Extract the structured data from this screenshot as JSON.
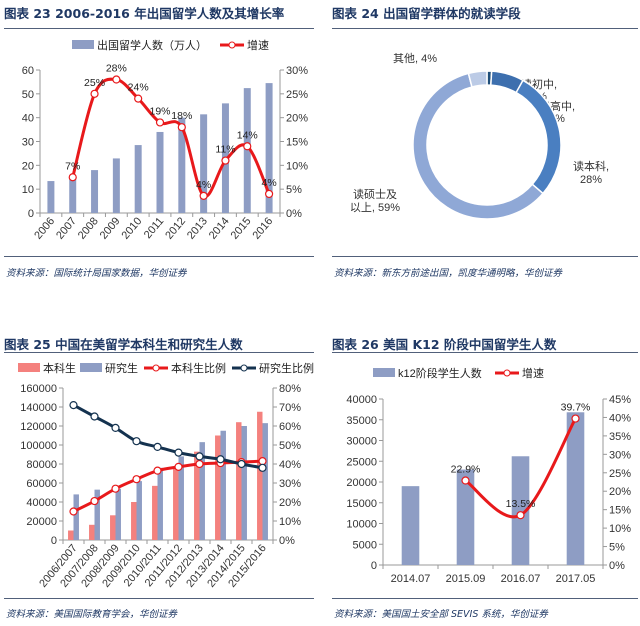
{
  "figures": [
    {
      "title": "图表 23 2006-2016 年出国留学人数及其增长率",
      "source": "资料来源：国际统计局国家数据，华创证券"
    },
    {
      "title": "图表 24 出国留学群体的就读学段",
      "source": "资料来源：新东方前途出国，凯度华通明略，华创证券"
    },
    {
      "title": "图表 25 中国在美留学本科生和研究生人数",
      "source": "资料来源：美国国际教育学会，华创证券"
    },
    {
      "title": "图表 26 美国 K12 阶段中国留学生人数",
      "source": "资料来源：美国国土安全部 SEVIS 系统，华创证券"
    }
  ],
  "chart_data": [
    {
      "type": "bar+line",
      "categories": [
        "2006",
        "2007",
        "2008",
        "2009",
        "2010",
        "2011",
        "2012",
        "2013",
        "2014",
        "2015",
        "2016"
      ],
      "bar_series": [
        {
          "name": "出国留学人数（万人）",
          "values": [
            13.4,
            14.4,
            18.0,
            22.9,
            28.5,
            34.0,
            40.0,
            41.4,
            46.0,
            52.4,
            54.5
          ],
          "color": "#8e9dc4"
        }
      ],
      "line_series": [
        {
          "name": "增速",
          "values": [
            null,
            7.5,
            25,
            28,
            24,
            19,
            18,
            3.6,
            11,
            14,
            4
          ],
          "labels": [
            "",
            "7%",
            "25%",
            "28%",
            "24%",
            "19%",
            "18%",
            "4%",
            "11%",
            "14%",
            "4%"
          ],
          "color": "#e8191b"
        }
      ],
      "ylim": [
        0,
        60
      ],
      "yticks": [
        0,
        10,
        20,
        30,
        40,
        50,
        60
      ],
      "y2lim": [
        0,
        30
      ],
      "y2ticks": [
        "0%",
        "5%",
        "10%",
        "15%",
        "20%",
        "25%",
        "30%"
      ],
      "legend": "top",
      "x_labels_rotated": true
    },
    {
      "type": "pie",
      "donut": true,
      "slices": [
        {
          "label": "读初中,",
          "value_label": "1%",
          "value": 1,
          "color": "#1f4e79"
        },
        {
          "label": "读高中,",
          "value_label": "7%",
          "value": 7,
          "color": "#3d6fae"
        },
        {
          "label": "读本科,",
          "value_label": "28%",
          "value": 28,
          "color": "#4a7fc1"
        },
        {
          "label": "读硕士及",
          "value_label": "以上, 59%",
          "value": 59,
          "color": "#8fa8d6"
        },
        {
          "label": "其他,",
          "value_label": "4%",
          "value": 4,
          "color": "#bccbe6"
        }
      ]
    },
    {
      "type": "bar+line",
      "categories": [
        "2006/2007",
        "2007/2008",
        "2008/2009",
        "2009/2010",
        "2010/2011",
        "2011/2012",
        "2012/2013",
        "2013/2014",
        "2014/2015",
        "2015/2016"
      ],
      "bar_series": [
        {
          "name": "本科生",
          "values": [
            10000,
            16000,
            26000,
            40000,
            57000,
            75000,
            93000,
            110000,
            124000,
            135000
          ],
          "color": "#f4817e"
        },
        {
          "name": "研究生",
          "values": [
            48000,
            53000,
            54000,
            62000,
            76000,
            88000,
            103000,
            115000,
            120000,
            123000
          ],
          "color": "#8e9dc4"
        }
      ],
      "line_series": [
        {
          "name": "本科生比例",
          "values": [
            15,
            20.5,
            27,
            32,
            36.5,
            38.5,
            40,
            40.5,
            41,
            41.5
          ],
          "color": "#e8191b"
        },
        {
          "name": "研究生比例",
          "values": [
            71,
            65,
            59,
            52,
            49,
            46,
            44,
            42.5,
            40,
            38
          ],
          "color": "#14324f"
        }
      ],
      "ylim": [
        0,
        160000
      ],
      "yticks": [
        0,
        20000,
        40000,
        60000,
        80000,
        100000,
        120000,
        140000,
        160000
      ],
      "y2lim": [
        0,
        80
      ],
      "y2ticks": [
        "0%",
        "10%",
        "20%",
        "30%",
        "40%",
        "50%",
        "60%",
        "70%",
        "80%"
      ],
      "legend": "top",
      "x_labels_rotated": true
    },
    {
      "type": "bar+line",
      "categories": [
        "2014.07",
        "2015.09",
        "2016.07",
        "2017.05"
      ],
      "bar_series": [
        {
          "name": "k12阶段学生人数",
          "values": [
            19000,
            23000,
            26200,
            36800
          ],
          "color": "#8e9dc4"
        }
      ],
      "line_series": [
        {
          "name": "增速",
          "values": [
            null,
            22.9,
            13.5,
            39.7
          ],
          "labels": [
            "",
            "22.9%",
            "13.5%",
            "39.7%"
          ],
          "color": "#e8191b"
        }
      ],
      "ylim": [
        0,
        40000
      ],
      "yticks": [
        0,
        5000,
        10000,
        15000,
        20000,
        25000,
        30000,
        35000,
        40000
      ],
      "y2lim": [
        0,
        45
      ],
      "y2ticks": [
        "0%",
        "5%",
        "10%",
        "15%",
        "20%",
        "25%",
        "30%",
        "35%",
        "40%",
        "45%"
      ],
      "legend": "top",
      "x_labels_rotated": false
    }
  ]
}
